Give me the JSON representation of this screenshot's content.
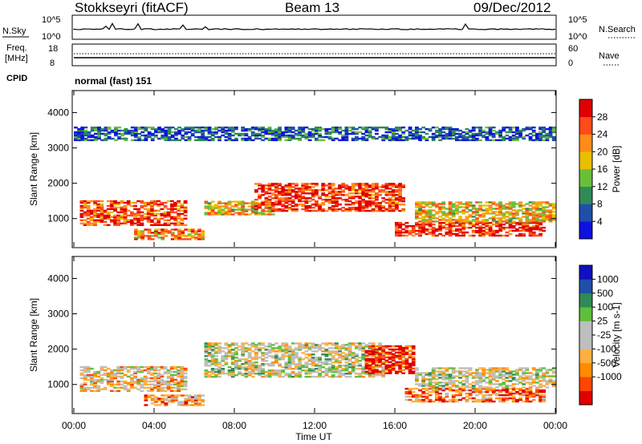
{
  "header": {
    "station": "Stokkseyri (fitACF)",
    "beam": "Beam 13",
    "date": "09/Dec/2012"
  },
  "top_panels": {
    "nsky_label": "N.Sky",
    "nsearch_label": "N.Search",
    "noise_ticks_left": [
      "10^5",
      "10^0"
    ],
    "noise_ticks_right": [
      "10^5",
      "10^0"
    ],
    "freq_label_line1": "Freq.",
    "freq_label_line2": "[MHz]",
    "freq_ticks": [
      "18",
      "8"
    ],
    "nave_label": "Nave",
    "nave_ticks": [
      "60",
      "0"
    ],
    "cpid_label": "CPID",
    "cpid_text": "normal (fast) 151"
  },
  "colors": {
    "power_scale": [
      "#1010e0",
      "#1f4fa8",
      "#2e8b57",
      "#6abf3a",
      "#e8c000",
      "#ff8c1a",
      "#ff4a1a",
      "#e00000"
    ],
    "velocity_scale": [
      "#e00000",
      "#ff4500",
      "#ff8c00",
      "#ffb040",
      "#bebebe",
      "#bebebe",
      "#5fbf3a",
      "#2e8b57",
      "#1f4fa8",
      "#1010c0"
    ]
  },
  "chart_data": [
    {
      "type": "heatmap",
      "panel": "power",
      "xlabel": "Time UT",
      "ylabel": "Slant Range [km]",
      "x_ticks": [
        "00:00",
        "04:00",
        "08:00",
        "12:00",
        "16:00",
        "20:00",
        "00:00"
      ],
      "y_ticks": [
        "1000",
        "2000",
        "3000",
        "4000"
      ],
      "ylim": [
        200,
        4600
      ],
      "colorbar_label": "Power [dB]",
      "colorbar_ticks": [
        "4",
        "8",
        "12",
        "16",
        "20",
        "24",
        "28"
      ],
      "bands": [
        {
          "t0": 0.3,
          "t1": 5.6,
          "r0": 800,
          "r1": 1500,
          "level": 0.8
        },
        {
          "t0": 3.0,
          "t1": 6.5,
          "r0": 400,
          "r1": 700,
          "level": 0.7
        },
        {
          "t0": 6.5,
          "t1": 10.0,
          "r0": 1100,
          "r1": 1500,
          "level": 0.6
        },
        {
          "t0": 9.0,
          "t1": 16.5,
          "r0": 1200,
          "r1": 2000,
          "level": 0.85
        },
        {
          "t0": 16.0,
          "t1": 23.5,
          "r0": 500,
          "r1": 900,
          "level": 0.9
        },
        {
          "t0": 17.0,
          "t1": 24.0,
          "r0": 900,
          "r1": 1500,
          "level": 0.6
        },
        {
          "t0": 0.0,
          "t1": 24.0,
          "r0": 3200,
          "r1": 3600,
          "level": 0.2
        }
      ]
    },
    {
      "type": "heatmap",
      "panel": "velocity",
      "xlabel": "Time UT",
      "ylabel": "Slant Range [km]",
      "x_ticks": [
        "00:00",
        "04:00",
        "08:00",
        "12:00",
        "16:00",
        "20:00",
        "00:00"
      ],
      "y_ticks": [
        "1000",
        "2000",
        "3000",
        "4000"
      ],
      "ylim": [
        200,
        4600
      ],
      "colorbar_label": "Velocity [m s-1]",
      "colorbar_ticks": [
        "1000",
        "500",
        "100",
        "25",
        "-25",
        "-100",
        "-500",
        "-1000"
      ],
      "bands": [
        {
          "t0": 0.3,
          "t1": 5.6,
          "r0": 800,
          "r1": 1500,
          "level": 0.4
        },
        {
          "t0": 3.5,
          "t1": 6.5,
          "r0": 400,
          "r1": 700,
          "level": 0.3
        },
        {
          "t0": 6.5,
          "t1": 15.5,
          "r0": 1200,
          "r1": 2200,
          "level": 0.5
        },
        {
          "t0": 14.5,
          "t1": 17.0,
          "r0": 1300,
          "r1": 2100,
          "level": 0.05
        },
        {
          "t0": 16.5,
          "t1": 23.5,
          "r0": 500,
          "r1": 900,
          "level": 0.2
        },
        {
          "t0": 17.0,
          "t1": 24.0,
          "r0": 900,
          "r1": 1500,
          "level": 0.5
        }
      ]
    }
  ]
}
